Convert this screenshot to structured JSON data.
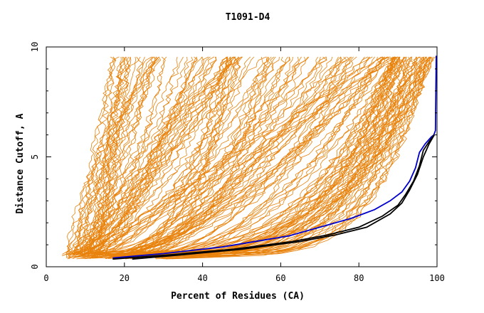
{
  "chart_data": {
    "type": "line",
    "title": "T1091-D4",
    "xlabel": "Percent of Residues (CA)",
    "ylabel": "Distance Cutoff, A",
    "xlim": [
      0,
      100
    ],
    "ylim": [
      0,
      10
    ],
    "x_ticks": [
      0,
      20,
      40,
      60,
      80,
      100
    ],
    "y_ticks": [
      0,
      5,
      10
    ],
    "grid": false,
    "legend": "none",
    "colors": {
      "group": "#e8820c",
      "highlight_a": "#0000cc",
      "highlight_b": "#000000",
      "axes": "#000000"
    },
    "group_count": 180,
    "highlighted": [
      {
        "color": "#0000cc",
        "points": [
          [
            17,
            0.4
          ],
          [
            30,
            0.6
          ],
          [
            45,
            0.9
          ],
          [
            62,
            1.4
          ],
          [
            70,
            1.8
          ],
          [
            78,
            2.2
          ],
          [
            84,
            2.6
          ],
          [
            88,
            3.0
          ],
          [
            91,
            3.4
          ],
          [
            93,
            3.9
          ],
          [
            94.5,
            4.5
          ],
          [
            95.5,
            5.2
          ],
          [
            97,
            5.6
          ],
          [
            98.5,
            5.9
          ],
          [
            99.2,
            6.0
          ],
          [
            99.6,
            6.2
          ],
          [
            99.8,
            9.6
          ]
        ]
      },
      {
        "color": "#000000",
        "points": [
          [
            17,
            0.35
          ],
          [
            32,
            0.55
          ],
          [
            48,
            0.8
          ],
          [
            63,
            1.15
          ],
          [
            72,
            1.45
          ],
          [
            80,
            1.8
          ],
          [
            86,
            2.3
          ],
          [
            90,
            2.8
          ],
          [
            92,
            3.3
          ],
          [
            94,
            3.9
          ],
          [
            95.5,
            4.6
          ],
          [
            96.5,
            5.3
          ],
          [
            98,
            5.7
          ],
          [
            99.3,
            6.0
          ]
        ]
      },
      {
        "color": "#000000",
        "points": [
          [
            22,
            0.35
          ],
          [
            35,
            0.55
          ],
          [
            50,
            0.8
          ],
          [
            65,
            1.15
          ],
          [
            74,
            1.45
          ],
          [
            82,
            1.8
          ],
          [
            88,
            2.4
          ],
          [
            91,
            2.9
          ],
          [
            93,
            3.5
          ],
          [
            95,
            4.2
          ],
          [
            96.5,
            5.0
          ],
          [
            98,
            5.6
          ],
          [
            99.3,
            6.0
          ]
        ]
      }
    ]
  }
}
